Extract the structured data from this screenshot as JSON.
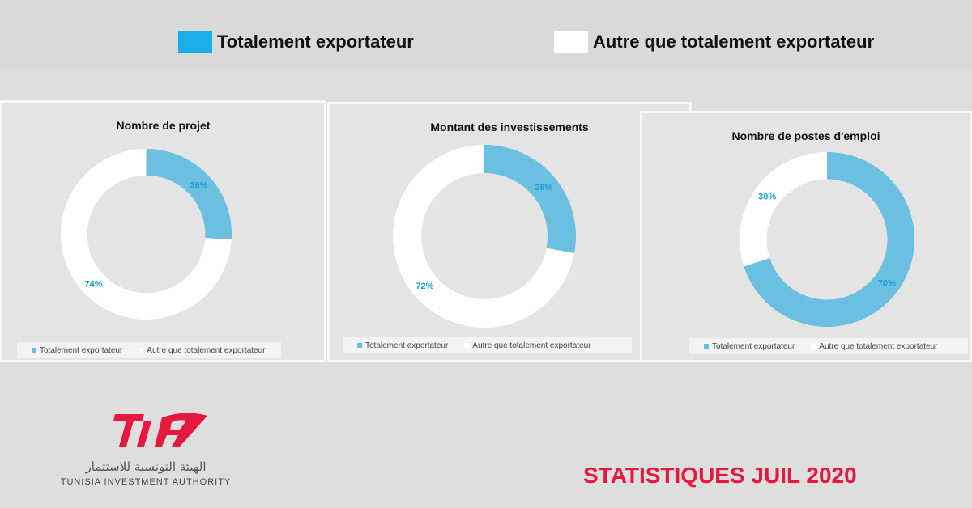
{
  "legend": {
    "items": [
      {
        "label": "Totalement exportateur",
        "color": "#1aaee8"
      },
      {
        "label": "Autre que totalement exportateur",
        "color": "#ffffff"
      }
    ]
  },
  "chart_data": [
    {
      "type": "pie",
      "title": "Nombre de projet",
      "categories": [
        "Totalement exportateur",
        "Autre que totalement exportateur"
      ],
      "values": [
        26,
        74
      ],
      "labels": [
        "26%",
        "74%"
      ],
      "colors": [
        "#6bbfe0",
        "#ffffff"
      ],
      "legend": "bottom"
    },
    {
      "type": "pie",
      "title": "Montant des investissements",
      "categories": [
        "Totalement exportateur",
        "Autre que totalement exportateur"
      ],
      "values": [
        28,
        72
      ],
      "labels": [
        "28%",
        "72%"
      ],
      "colors": [
        "#6bbfe0",
        "#ffffff"
      ],
      "legend": "bottom"
    },
    {
      "type": "pie",
      "title": "Nombre de postes d'emploi",
      "categories": [
        "Totalement exportateur",
        "Autre que totalement exportateur"
      ],
      "values": [
        70,
        30
      ],
      "labels": [
        "70%",
        "30%"
      ],
      "colors": [
        "#6bbfe0",
        "#ffffff"
      ],
      "legend": "bottom"
    }
  ],
  "logo": {
    "mark": "TIA",
    "arabic": "الهيئة التونسية للاستثمار",
    "english": "TUNISIA INVESTMENT AUTHORITY"
  },
  "footer": {
    "title": "STATISTIQUES JUIL 2020",
    "color": "#e5183e"
  }
}
